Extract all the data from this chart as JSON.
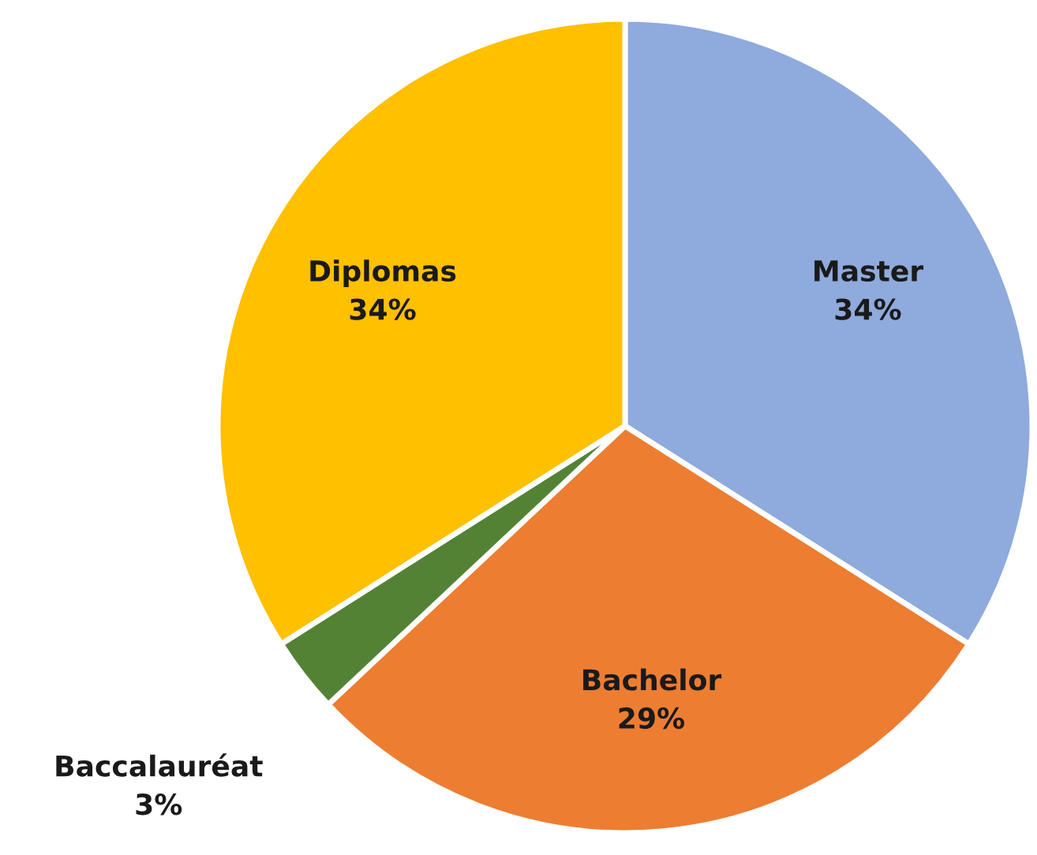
{
  "chart_data": {
    "type": "pie",
    "categories": [
      "Master",
      "Bachelor",
      "Baccalauréat",
      "Diplomas"
    ],
    "values": [
      34,
      29,
      3,
      34
    ],
    "value_labels": [
      "34%",
      "29%",
      "3%",
      "34%"
    ],
    "colors": [
      "#8faadc",
      "#ed7d31",
      "#548235",
      "#ffc000"
    ],
    "legend": false
  }
}
